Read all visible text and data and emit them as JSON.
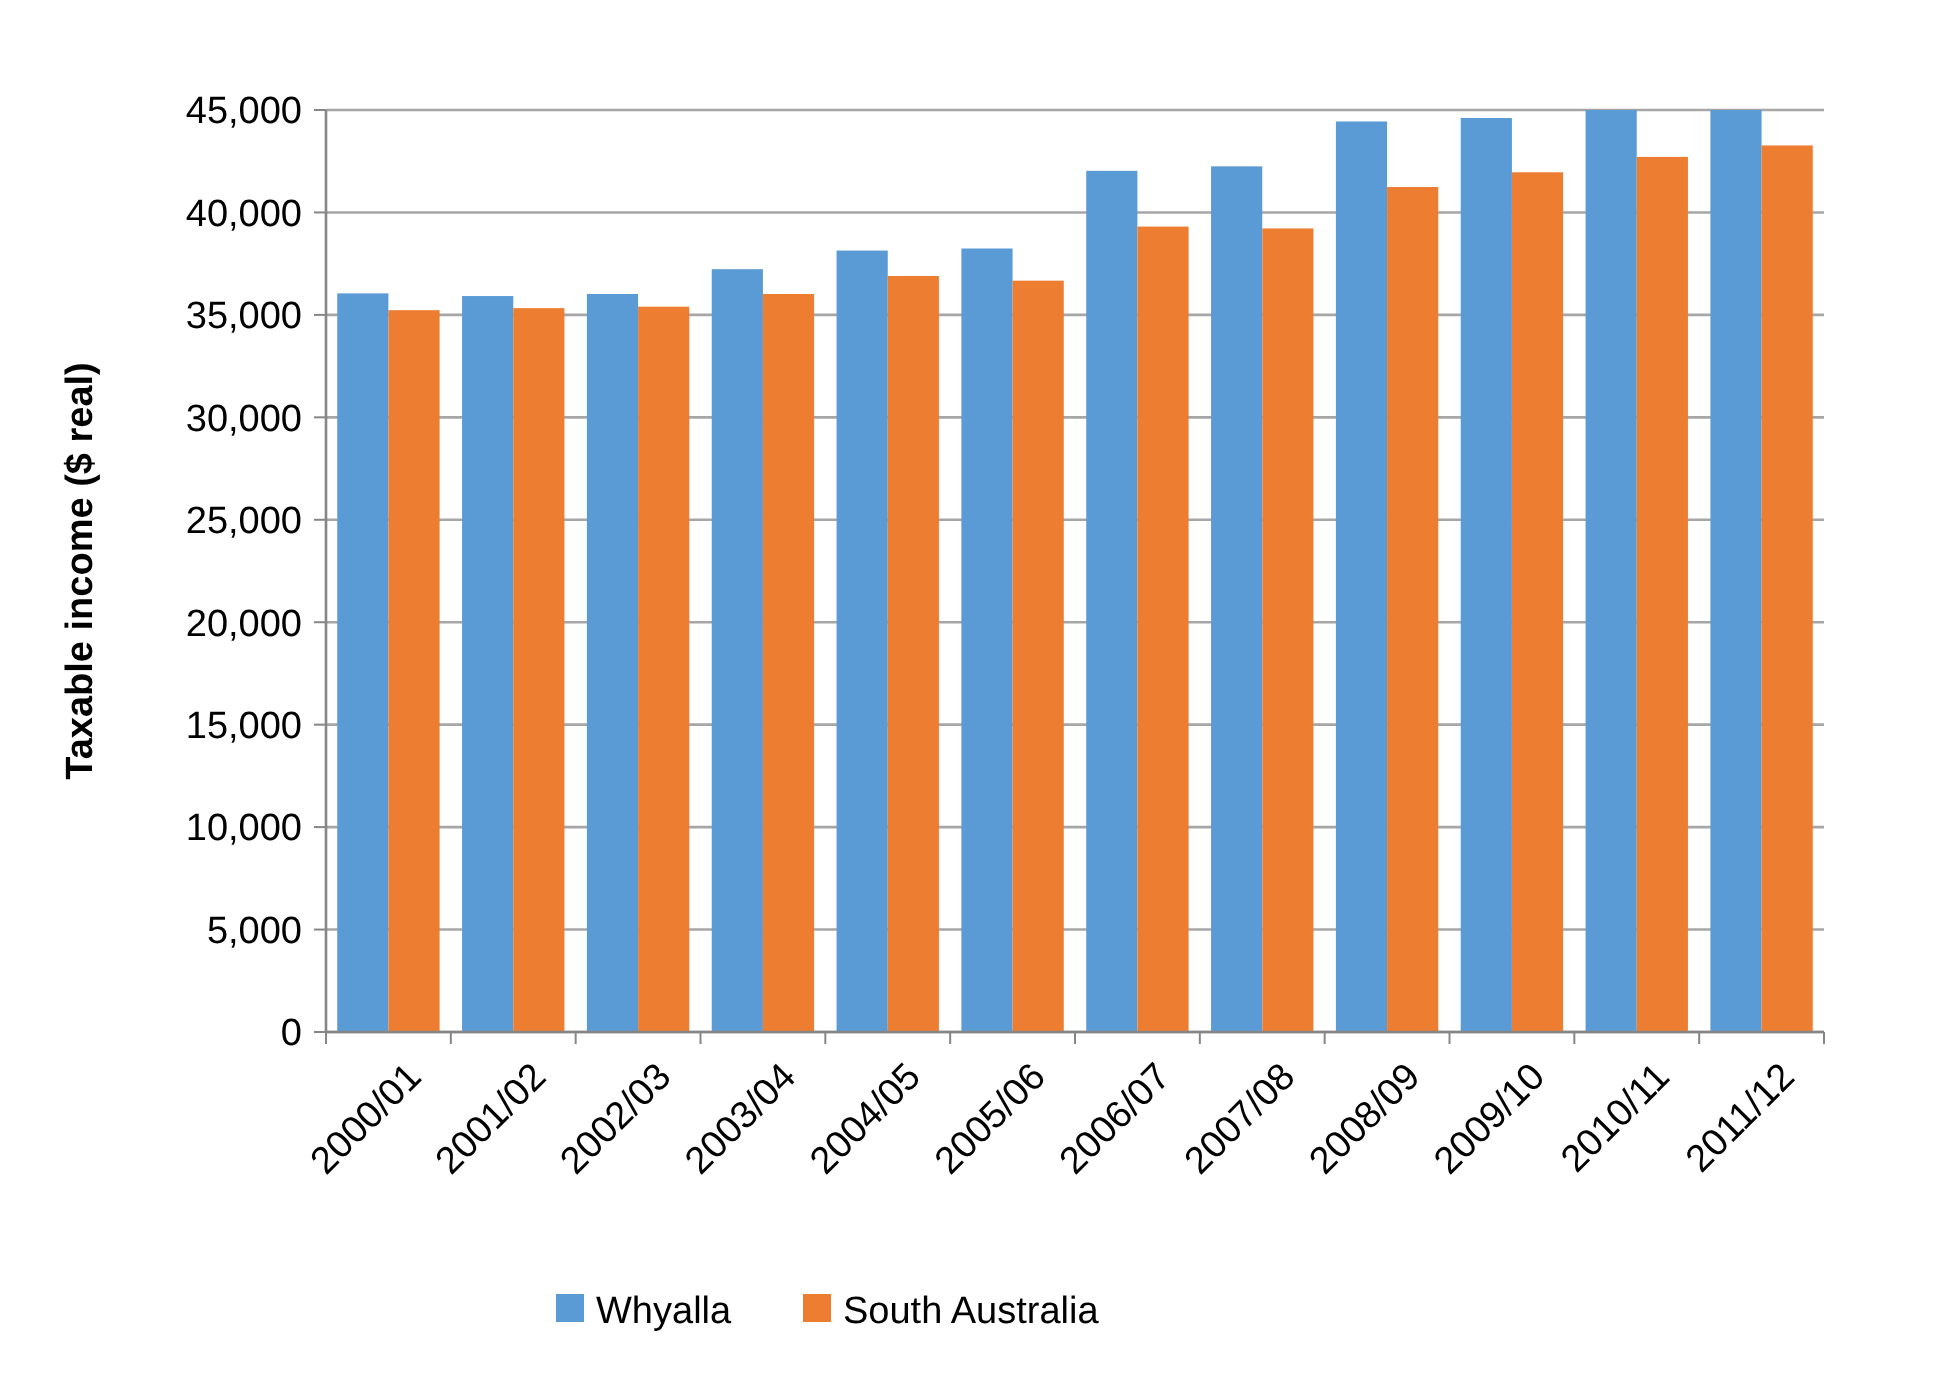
{
  "chart_data": {
    "type": "bar",
    "ylabel": "Taxable income ($ real)",
    "categories": [
      "2000/01",
      "2001/02",
      "2002/03",
      "2003/04",
      "2004/05",
      "2005/06",
      "2006/07",
      "2007/08",
      "2008/09",
      "2009/10",
      "2010/11",
      "2011/12"
    ],
    "series": [
      {
        "name": "Whyalla",
        "color": "#5b9bd5",
        "values": [
          36050,
          35920,
          36020,
          37230,
          38140,
          38240,
          42030,
          42250,
          44440,
          44610,
          45000,
          45000
        ]
      },
      {
        "name": "South Australia",
        "color": "#ed7d31",
        "values": [
          35230,
          35330,
          35400,
          36020,
          36900,
          36670,
          39310,
          39220,
          41240,
          41960,
          42710,
          43270
        ]
      }
    ],
    "ylim": [
      0,
      45000
    ],
    "yticks": [
      {
        "value": 0,
        "label": "0"
      },
      {
        "value": 5000,
        "label": "5,000"
      },
      {
        "value": 10000,
        "label": "10,000"
      },
      {
        "value": 15000,
        "label": "15,000"
      },
      {
        "value": 20000,
        "label": "20,000"
      },
      {
        "value": 25000,
        "label": "25,000"
      },
      {
        "value": 30000,
        "label": "30,000"
      },
      {
        "value": 35000,
        "label": "35,000"
      },
      {
        "value": 40000,
        "label": "40,000"
      },
      {
        "value": 45000,
        "label": "45,000"
      }
    ],
    "grid": "y",
    "legend": "bottom"
  }
}
